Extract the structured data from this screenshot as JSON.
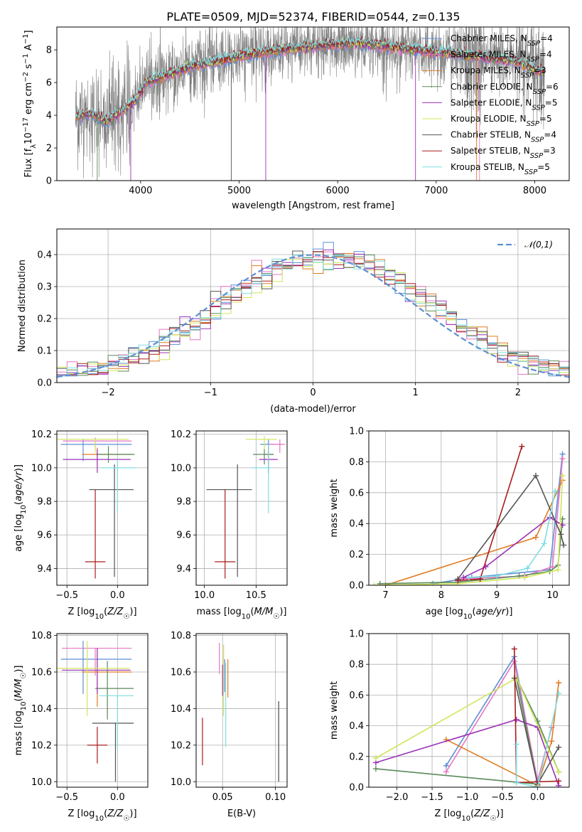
{
  "figure": {
    "title": "PLATE=0509, MJD=52374, FIBERID=0544, z=0.135",
    "colors": {
      "models": [
        "#5e8ed6",
        "#e377c2",
        "#e07b22",
        "#5a8a5a",
        "#9b30b8",
        "#cfe65a",
        "#555555",
        "#a81c1c",
        "#7fdde0"
      ],
      "data": "#808080",
      "normal": "#5e8ed6"
    },
    "model_names": [
      "Chabrier MILES",
      "Salpeter MILES",
      "Kroupa MILES",
      "Chabrier ELODIE",
      "Salpeter ELODIE",
      "Kroupa ELODIE",
      "Chabrier STELIB",
      "Salpeter STELIB",
      "Kroupa STELIB"
    ],
    "legend_labels": [
      "Chabrier MILES, N_SSP=4",
      "Salpeter MILES, N_SSP=4",
      "Kroupa MILES, N_SSP=3",
      "Chabrier ELODIE, N_SSP=6",
      "Salpeter ELODIE, N_SSP=5",
      "Kroupa ELODIE, N_SSP=5",
      "Chabrier STELIB, N_SSP=4",
      "Salpeter STELIB, N_SSP=3",
      "Kroupa STELIB, N_SSP=5"
    ]
  },
  "chart_data": [
    {
      "id": "spectrum",
      "type": "line",
      "xlabel": "wavelength [Angstrom, rest frame]",
      "ylabel": "Flux [f_λ 10^-17 erg cm^-2 s^-1 A^-1]",
      "xlim": [
        3150,
        8350
      ],
      "ylim": [
        0,
        9.4
      ],
      "xticks": [
        4000,
        5000,
        6000,
        7000,
        8000
      ],
      "yticks": [
        0,
        2,
        4,
        6,
        8
      ],
      "legend_position": "upper right",
      "continuum_knots": {
        "x": [
          3340,
          3500,
          3650,
          3800,
          3950,
          4050,
          4300,
          4500,
          4800,
          5000,
          5300,
          5600,
          5900,
          6200,
          6500,
          6800,
          7100,
          7400,
          7700,
          7850,
          8000,
          8100
        ],
        "y": [
          3.9,
          4.1,
          3.6,
          4.2,
          4.9,
          6.0,
          6.5,
          7.0,
          7.3,
          7.6,
          7.9,
          8.1,
          8.3,
          8.4,
          8.2,
          8.0,
          7.8,
          7.6,
          7.4,
          7.2,
          6.8,
          6.6
        ]
      }
    },
    {
      "id": "residual_histogram",
      "type": "histogram",
      "xlabel": "(data-model)/error",
      "ylabel": "Normed distribution",
      "xlim": [
        -2.5,
        2.5
      ],
      "ylim": [
        0,
        0.48
      ],
      "xticks": [
        -2,
        -1,
        0,
        1,
        2
      ],
      "yticks": [
        0.0,
        0.1,
        0.2,
        0.3,
        0.4
      ],
      "grid": true,
      "bin_width": 0.1,
      "bins_from": -2.5,
      "legend": "𝒩(0,1)",
      "legend_position": "upper right",
      "normal_curve": {
        "mean": 0,
        "sigma": 1
      }
    },
    {
      "id": "age_vs_Z",
      "type": "errorbar",
      "xlabel": "Z [log10(Z/Z☉)]",
      "ylabel": "age  [log10(age/yr)]",
      "xlim": [
        -0.6,
        0.3
      ],
      "ylim": [
        9.3,
        10.22
      ],
      "xticks": [
        -0.5,
        0.0
      ],
      "yticks": [
        9.4,
        9.6,
        9.8,
        10.0,
        10.2
      ],
      "grid": true,
      "points": [
        {
          "x": -0.34,
          "xerr": [
            0.22,
            0.48
          ],
          "y": 10.14,
          "yerr": [
            0.1,
            0.03
          ]
        },
        {
          "x": -0.22,
          "xerr": [
            0.32,
            0.36
          ],
          "y": 10.16,
          "yerr": [
            0.05,
            0.02
          ]
        },
        {
          "x": -0.2,
          "xerr": [
            0.15,
            0.34
          ],
          "y": 10.08,
          "yerr": [
            0.06,
            0.04
          ]
        },
        {
          "x": -0.09,
          "xerr": [
            0.12,
            0.26
          ],
          "y": 10.08,
          "yerr": [
            0.05,
            0.05
          ]
        },
        {
          "x": -0.2,
          "xerr": [
            0.34,
            0.33
          ],
          "y": 10.05,
          "yerr": [
            0.08,
            0.06
          ]
        },
        {
          "x": -0.22,
          "xerr": [
            0.38,
            0.33
          ],
          "y": 10.17,
          "yerr": [
            0.08,
            0.0
          ]
        },
        {
          "x": -0.03,
          "xerr": [
            0.25,
            0.19
          ],
          "y": 9.87,
          "yerr": [
            0.52,
            0.15
          ]
        },
        {
          "x": -0.22,
          "xerr": [
            0.1,
            0.1
          ],
          "y": 9.44,
          "yerr": [
            0.1,
            0.43
          ]
        },
        {
          "x": 0.0,
          "xerr": [
            0.16,
            0.18
          ],
          "y": 10.0,
          "yerr": [
            0.27,
            0.05
          ]
        }
      ]
    },
    {
      "id": "age_vs_mass",
      "type": "errorbar",
      "xlabel": "mass [log10(M/M☉)]",
      "ylabel": "",
      "xlim": [
        9.92,
        10.8
      ],
      "ylim": [
        9.3,
        10.22
      ],
      "xticks": [
        10.0,
        10.5
      ],
      "yticks": [
        9.4,
        9.6,
        9.8,
        10.0,
        10.2
      ],
      "grid": true,
      "points": [
        {
          "x": 10.62,
          "xerr": [
            0.08,
            0.07
          ],
          "y": 10.14,
          "yerr": [
            0.1,
            0.03
          ]
        },
        {
          "x": 10.73,
          "xerr": [
            0.1,
            0.05
          ],
          "y": 10.14,
          "yerr": [
            0.05,
            0.03
          ]
        },
        {
          "x": 10.62,
          "xerr": [
            0.04,
            0.05
          ],
          "y": 10.08,
          "yerr": [
            0.06,
            0.05
          ]
        },
        {
          "x": 10.58,
          "xerr": [
            0.11,
            0.09
          ],
          "y": 10.08,
          "yerr": [
            0.06,
            0.04
          ]
        },
        {
          "x": 10.62,
          "xerr": [
            0.09,
            0.09
          ],
          "y": 10.05,
          "yerr": [
            0.08,
            0.07
          ]
        },
        {
          "x": 10.58,
          "xerr": [
            0.18,
            0.12
          ],
          "y": 10.17,
          "yerr": [
            0.06,
            0.02
          ]
        },
        {
          "x": 10.32,
          "xerr": [
            0.3,
            0.14
          ],
          "y": 9.87,
          "yerr": [
            0.52,
            0.15
          ]
        },
        {
          "x": 10.2,
          "xerr": [
            0.1,
            0.1
          ],
          "y": 9.44,
          "yerr": [
            0.1,
            0.43
          ]
        },
        {
          "x": 10.62,
          "xerr": [
            0.16,
            0.02
          ],
          "y": 10.0,
          "yerr": [
            0.27,
            0.14
          ]
        }
      ]
    },
    {
      "id": "weight_vs_age",
      "type": "line",
      "xlabel": "age  [log10(age/yr)]",
      "ylabel": "mass weight",
      "xlim": [
        6.7,
        10.3
      ],
      "ylim": [
        0,
        1.0
      ],
      "xticks": [
        7,
        8,
        9,
        10
      ],
      "yticks": [
        0.0,
        0.2,
        0.4,
        0.6,
        0.8,
        1.0
      ],
      "grid": true,
      "series": [
        {
          "x": [
            7.85,
            8.55,
            9.95,
            10.18
          ],
          "y": [
            0.01,
            0.05,
            0.1,
            0.85
          ]
        },
        {
          "x": [
            8.3,
            9.5,
            10.0,
            10.18
          ],
          "y": [
            0.04,
            0.06,
            0.12,
            0.82
          ]
        },
        {
          "x": [
            7.0,
            9.7,
            10.18
          ],
          "y": [
            0.0,
            0.31,
            0.68
          ]
        },
        {
          "x": [
            6.9,
            8.3,
            9.4,
            9.95,
            10.1,
            10.18
          ],
          "y": [
            0.01,
            0.02,
            0.06,
            0.09,
            0.13,
            0.43
          ]
        },
        {
          "x": [
            8.4,
            8.8,
            9.95,
            10.18
          ],
          "y": [
            0.05,
            0.12,
            0.44,
            0.39
          ]
        },
        {
          "x": [
            6.8,
            8.3,
            9.5,
            10.1,
            10.18
          ],
          "y": [
            0.0,
            0.01,
            0.05,
            0.1,
            0.71
          ]
        },
        {
          "x": [
            8.3,
            9.7,
            10.15,
            10.2
          ],
          "y": [
            0.04,
            0.71,
            0.33,
            0.26
          ]
        },
        {
          "x": [
            8.3,
            8.7,
            9.45
          ],
          "y": [
            0.03,
            0.04,
            0.9
          ]
        },
        {
          "x": [
            8.5,
            9.0,
            9.55,
            9.85,
            10.05
          ],
          "y": [
            0.05,
            0.06,
            0.11,
            0.27,
            0.61
          ]
        }
      ]
    },
    {
      "id": "mass_vs_Z",
      "type": "errorbar",
      "xlabel": "Z [log10(Z/Z☉)]",
      "ylabel": "mass [log10(M/M☉)]",
      "xlim": [
        -0.6,
        0.3
      ],
      "ylim": [
        9.97,
        10.81
      ],
      "xticks": [
        -0.5,
        0.0
      ],
      "yticks": [
        10.0,
        10.2,
        10.4,
        10.6,
        10.8
      ],
      "grid": true,
      "points": [
        {
          "x": -0.34,
          "xerr": [
            0.22,
            0.48
          ],
          "y": 10.67,
          "yerr": [
            0.19,
            0.1
          ]
        },
        {
          "x": -0.22,
          "xerr": [
            0.33,
            0.36
          ],
          "y": 10.73,
          "yerr": [
            0.15,
            0.0
          ]
        },
        {
          "x": -0.2,
          "xerr": [
            0.15,
            0.34
          ],
          "y": 10.6,
          "yerr": [
            0.19,
            0.13
          ]
        },
        {
          "x": -0.1,
          "xerr": [
            0.12,
            0.26
          ],
          "y": 10.51,
          "yerr": [
            0.17,
            0.15
          ]
        },
        {
          "x": -0.2,
          "xerr": [
            0.35,
            0.33
          ],
          "y": 10.61,
          "yerr": [
            0.13,
            0.12
          ]
        },
        {
          "x": -0.3,
          "xerr": [
            0.3,
            0.42
          ],
          "y": 10.62,
          "yerr": [
            0.26,
            0.15
          ]
        },
        {
          "x": -0.02,
          "xerr": [
            0.23,
            0.18
          ],
          "y": 10.32,
          "yerr": [
            0.32,
            0.0
          ]
        },
        {
          "x": -0.2,
          "xerr": [
            0.1,
            0.1
          ],
          "y": 10.2,
          "yerr": [
            0.1,
            0.1
          ]
        },
        {
          "x": 0.0,
          "xerr": [
            0.18,
            0.16
          ],
          "y": 10.47,
          "yerr": [
            0.29,
            0.0
          ]
        }
      ]
    },
    {
      "id": "mass_vs_EBV",
      "type": "errorbar",
      "xlabel": "E(B-V)",
      "ylabel": "",
      "xlim": [
        0.025,
        0.111
      ],
      "ylim": [
        9.97,
        10.81
      ],
      "xticks": [
        0.05,
        0.1
      ],
      "yticks": [
        10.0,
        10.2,
        10.4,
        10.6,
        10.8
      ],
      "grid": true,
      "points": [
        {
          "x": 0.052,
          "xerr": [
            0,
            0
          ],
          "y": 10.62,
          "yerr": [
            0.13,
            0.05
          ]
        },
        {
          "x": 0.047,
          "xerr": [
            0,
            0
          ],
          "y": 10.69,
          "yerr": [
            0.1,
            0.07
          ]
        },
        {
          "x": 0.055,
          "xerr": [
            0,
            0
          ],
          "y": 10.6,
          "yerr": [
            0.14,
            0.07
          ]
        },
        {
          "x": 0.103,
          "xerr": [
            0,
            0
          ],
          "y": 10.22,
          "yerr": [
            0.22,
            0.22
          ]
        },
        {
          "x": 0.05,
          "xerr": [
            0,
            0
          ],
          "y": 10.57,
          "yerr": [
            0.1,
            0.07
          ]
        },
        {
          "x": 0.051,
          "xerr": [
            0,
            0
          ],
          "y": 10.6,
          "yerr": [
            0.24,
            0.15
          ]
        },
        {
          "x": 0.103,
          "xerr": [
            0,
            0
          ],
          "y": 10.22,
          "yerr": [
            0.22,
            0.22
          ]
        },
        {
          "x": 0.031,
          "xerr": [
            0,
            0
          ],
          "y": 10.22,
          "yerr": [
            0.13,
            0.13
          ]
        },
        {
          "x": 0.053,
          "xerr": [
            0,
            0
          ],
          "y": 10.42,
          "yerr": [
            0.23,
            0.23
          ]
        }
      ]
    },
    {
      "id": "weight_vs_Z",
      "type": "line",
      "xlabel": "Z [log10(Z/Z☉)]",
      "ylabel": "mass weight",
      "xlim": [
        -2.4,
        0.45
      ],
      "ylim": [
        0,
        1.0
      ],
      "xticks": [
        -2.0,
        -1.5,
        -1.0,
        -0.5,
        0.0
      ],
      "yticks": [
        0.0,
        0.2,
        0.4,
        0.6,
        0.8,
        1.0
      ],
      "grid": true,
      "series": [
        {
          "x": [
            -1.3,
            -0.33,
            0.0
          ],
          "y": [
            0.14,
            0.85,
            0.01
          ]
        },
        {
          "x": [
            -1.3,
            -0.33,
            0.0,
            0.2
          ],
          "y": [
            0.1,
            0.82,
            0.04,
            0.39
          ]
        },
        {
          "x": [
            -1.3,
            0.0,
            0.2,
            0.3
          ],
          "y": [
            0.31,
            0.01,
            0.3,
            0.68
          ]
        },
        {
          "x": [
            -2.3,
            0.0,
            -0.3,
            0.0,
            0.3
          ],
          "y": [
            0.12,
            0.02,
            0.71,
            0.43,
            0.1
          ]
        },
        {
          "x": [
            -2.3,
            -0.3,
            0.0,
            0.3
          ],
          "y": [
            0.16,
            0.44,
            0.39,
            0.01
          ]
        },
        {
          "x": [
            -2.3,
            -0.3,
            0.3
          ],
          "y": [
            0.19,
            0.71,
            0.1
          ]
        },
        {
          "x": [
            -0.33,
            0.0,
            0.3
          ],
          "y": [
            0.71,
            0.02,
            0.26
          ]
        },
        {
          "x": [
            -0.33,
            -0.3,
            0.3
          ],
          "y": [
            0.9,
            0.03,
            0.04
          ]
        },
        {
          "x": [
            -0.3,
            -0.3,
            0.0,
            0.3
          ],
          "y": [
            0.28,
            0.03,
            0.0,
            0.61
          ]
        }
      ]
    }
  ]
}
